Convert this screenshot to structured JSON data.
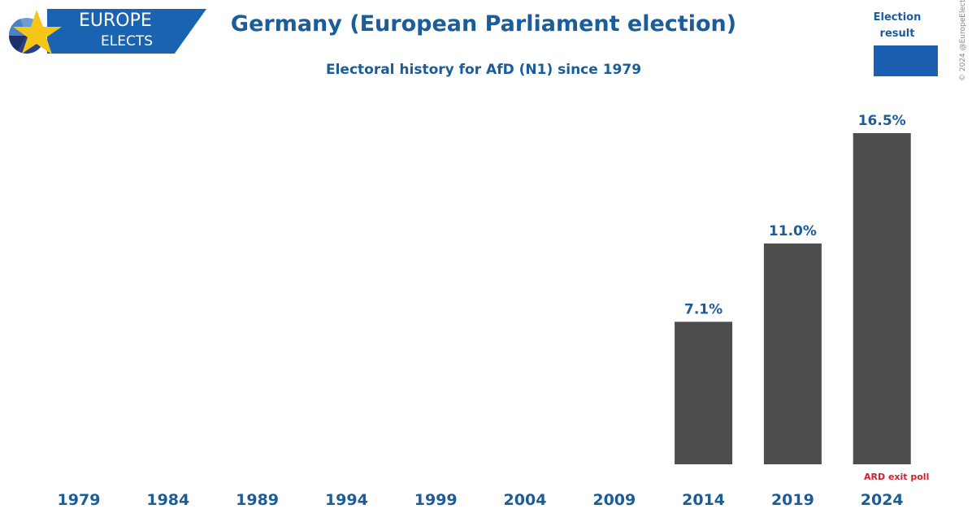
{
  "brand": {
    "line1": "EUROPE",
    "line2": "ELECTS"
  },
  "legend": {
    "label": "Election result",
    "swatch_color": "#1a5fb0"
  },
  "copyright": "© 2024 @EuropeElects",
  "colors": {
    "bar": "#4d4d4d",
    "text": "#1b5c9a",
    "note": "#d0202a",
    "brand": "#1a63b0"
  },
  "chart_data": {
    "type": "bar",
    "title": "Germany (European Parliament election)",
    "subtitle": "Electoral history for AfD (N1) since 1979",
    "xlabel": "",
    "ylabel": "",
    "ylim": [
      0,
      16.5
    ],
    "grid": false,
    "legend": "top-right",
    "categories": [
      "1979",
      "1984",
      "1989",
      "1994",
      "1999",
      "2004",
      "2009",
      "2014",
      "2019",
      "2024"
    ],
    "values": [
      null,
      null,
      null,
      null,
      null,
      null,
      null,
      7.1,
      11.0,
      16.5
    ],
    "labels": [
      "",
      "",
      "",
      "",
      "",
      "",
      "",
      "7.1%",
      "11.0%",
      "16.5%"
    ],
    "annotations": [
      {
        "category": "2024",
        "text": "ARD exit poll"
      }
    ]
  }
}
